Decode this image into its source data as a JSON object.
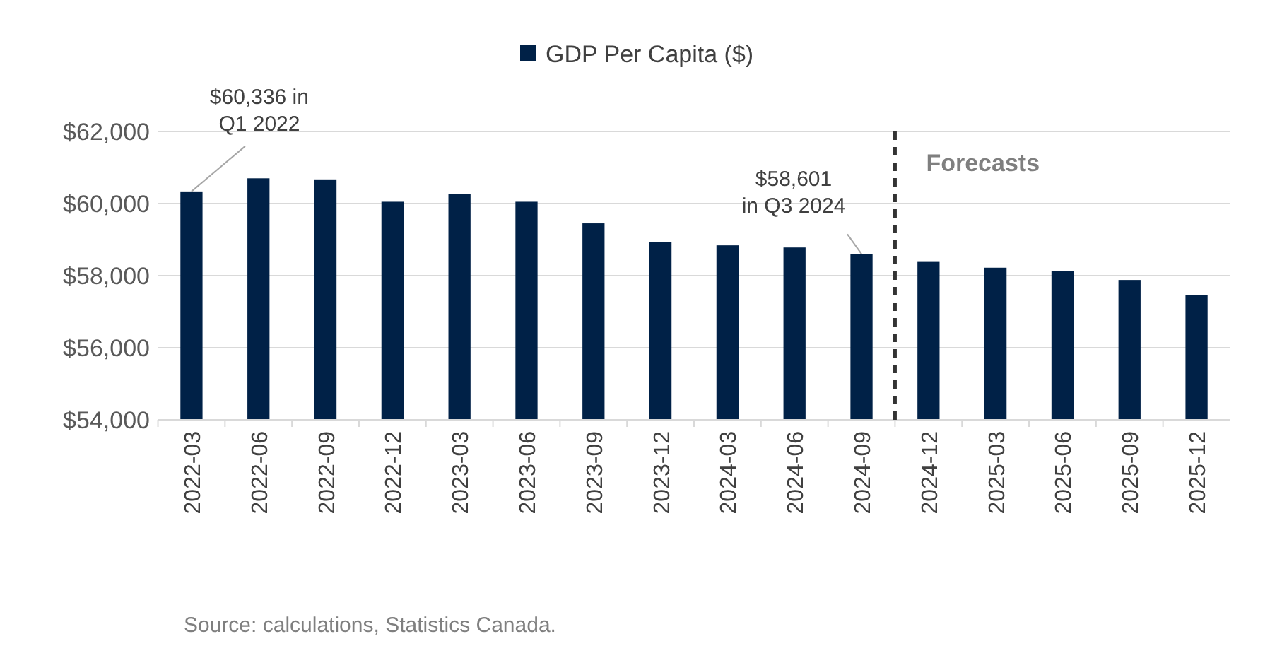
{
  "chart_data": {
    "type": "bar",
    "categories": [
      "2022-03",
      "2022-06",
      "2022-09",
      "2022-12",
      "2023-03",
      "2023-06",
      "2023-09",
      "2023-12",
      "2024-03",
      "2024-06",
      "2024-09",
      "2024-12",
      "2025-03",
      "2025-06",
      "2025-09",
      "2025-12"
    ],
    "series": [
      {
        "name": "GDP Per Capita ($)",
        "color": "#002147",
        "values": [
          60336,
          60700,
          60670,
          60050,
          60260,
          60050,
          59450,
          58930,
          58840,
          58780,
          58601,
          58400,
          58220,
          58120,
          57880,
          57460
        ]
      }
    ],
    "ylim": [
      54000,
      62000
    ],
    "yticks": [
      {
        "value": 54000,
        "label": "$54,000"
      },
      {
        "value": 56000,
        "label": "$56,000"
      },
      {
        "value": 58000,
        "label": "$58,000"
      },
      {
        "value": 60000,
        "label": "$60,000"
      },
      {
        "value": 62000,
        "label": "$62,000"
      }
    ],
    "grid": "y",
    "legend": "top",
    "ref_lines": [
      {
        "axis": "x",
        "value": "2024-12",
        "label": "Forecasts",
        "line_style": "dashed",
        "color": "#333333"
      }
    ],
    "annotations": [
      {
        "text": "$60,336 in\nQ1 2022",
        "x": "2022-03",
        "y": 60336
      },
      {
        "text": "$58,601\nin Q3 2024",
        "x": "2024-09",
        "y": 58601
      },
      "Source: calculations, Statistics Canada."
    ]
  }
}
